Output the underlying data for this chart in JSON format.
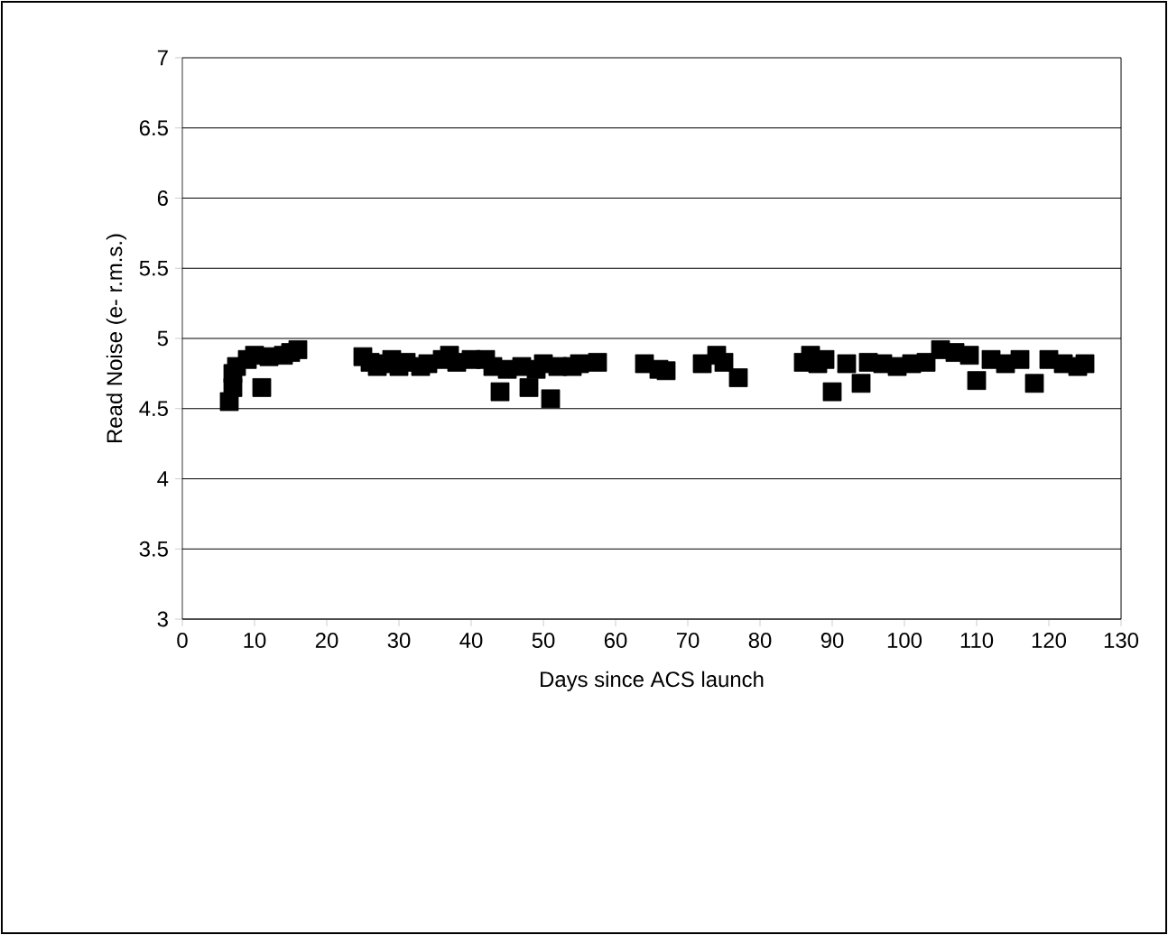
{
  "chart_data": {
    "type": "scatter",
    "xlabel": "Days since ACS launch",
    "ylabel": "Read Noise (e- r.m.s.)",
    "xlim": [
      0,
      130
    ],
    "xticks": [
      0,
      10,
      20,
      30,
      40,
      50,
      60,
      70,
      80,
      90,
      100,
      110,
      120,
      130
    ],
    "ylim": [
      3,
      7
    ],
    "yticks": [
      3,
      3.5,
      4,
      4.5,
      5,
      5.5,
      6,
      6.5,
      7
    ],
    "grid": "y",
    "marker": "square",
    "series": [
      {
        "color": "#000000",
        "x": [
          6.5,
          7,
          7,
          7.5,
          9,
          10,
          11,
          12,
          14,
          15,
          16,
          25,
          26,
          27,
          28,
          29,
          30,
          31,
          33,
          34,
          36,
          37,
          38,
          40,
          42,
          43,
          44,
          45,
          47,
          48,
          49,
          50,
          51,
          52,
          54,
          55,
          57.5,
          64,
          66,
          67,
          72,
          74,
          75,
          77,
          86,
          87,
          88,
          89,
          90,
          92,
          94,
          95,
          97,
          99,
          101,
          103,
          105,
          107,
          109,
          110,
          112,
          114,
          116,
          118,
          120,
          122,
          124,
          125
        ],
        "values": [
          4.55,
          4.65,
          4.75,
          4.8,
          4.85,
          4.88,
          4.65,
          4.87,
          4.88,
          4.9,
          4.92,
          4.87,
          4.83,
          4.8,
          4.82,
          4.85,
          4.8,
          4.83,
          4.8,
          4.82,
          4.85,
          4.88,
          4.83,
          4.85,
          4.85,
          4.8,
          4.62,
          4.78,
          4.8,
          4.65,
          4.78,
          4.82,
          4.57,
          4.8,
          4.8,
          4.82,
          4.83,
          4.82,
          4.78,
          4.77,
          4.82,
          4.88,
          4.83,
          4.72,
          4.83,
          4.88,
          4.82,
          4.85,
          4.62,
          4.82,
          4.68,
          4.83,
          4.82,
          4.8,
          4.82,
          4.83,
          4.92,
          4.9,
          4.88,
          4.7,
          4.85,
          4.82,
          4.85,
          4.68,
          4.85,
          4.82,
          4.8,
          4.82
        ]
      }
    ]
  }
}
